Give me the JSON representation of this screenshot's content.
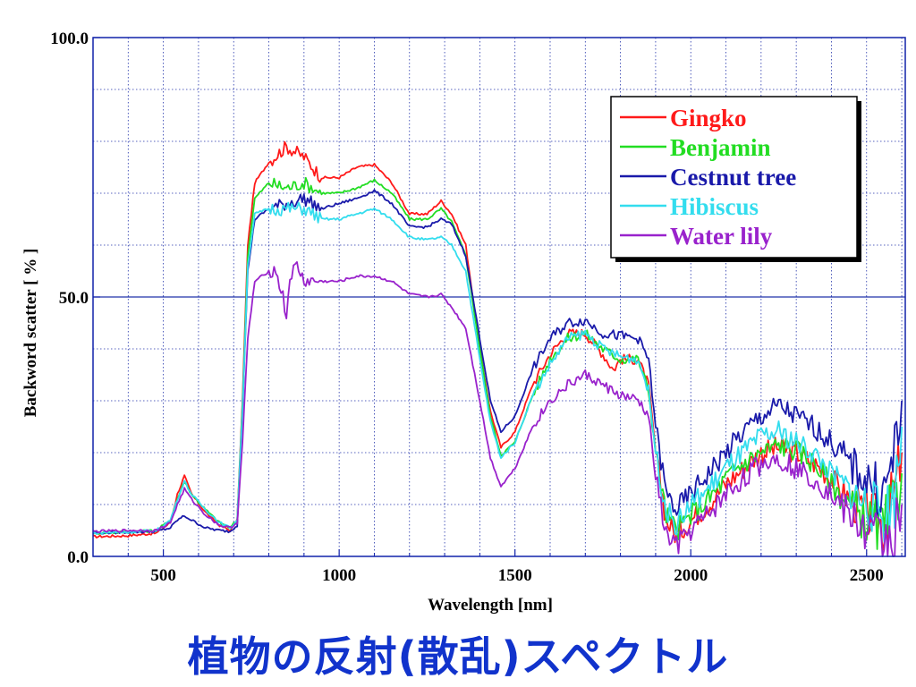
{
  "caption": "植物の反射(散乱)スペクトル",
  "chart_data": {
    "type": "line",
    "xlabel": "Wavelength [nm]",
    "ylabel": "Backword scatter [ % ]",
    "xlim": [
      300,
      2610
    ],
    "ylim": [
      0,
      100
    ],
    "xticks": [
      500,
      1000,
      1500,
      2000,
      2500
    ],
    "yticks": [
      0,
      50,
      100
    ],
    "ytick_labels": [
      "0.0",
      "50.0",
      "100.0"
    ],
    "grid": true,
    "legend_position": "top-right",
    "series": [
      {
        "name": "Gingko",
        "color": "#ff1a1a",
        "points": [
          [
            300,
            3.8
          ],
          [
            400,
            4.0
          ],
          [
            480,
            4.5
          ],
          [
            520,
            6.5
          ],
          [
            540,
            12
          ],
          [
            560,
            15.5
          ],
          [
            580,
            12
          ],
          [
            620,
            8.5
          ],
          [
            660,
            6
          ],
          [
            690,
            5
          ],
          [
            710,
            7
          ],
          [
            725,
            30
          ],
          [
            740,
            60
          ],
          [
            760,
            72
          ],
          [
            800,
            76
          ],
          [
            850,
            79
          ],
          [
            900,
            77
          ],
          [
            950,
            73
          ],
          [
            1000,
            73
          ],
          [
            1050,
            75
          ],
          [
            1100,
            75.5
          ],
          [
            1150,
            72
          ],
          [
            1200,
            66
          ],
          [
            1250,
            66
          ],
          [
            1290,
            68.5
          ],
          [
            1320,
            66
          ],
          [
            1360,
            60
          ],
          [
            1400,
            40
          ],
          [
            1430,
            28
          ],
          [
            1460,
            21
          ],
          [
            1500,
            24
          ],
          [
            1550,
            33
          ],
          [
            1600,
            39
          ],
          [
            1650,
            43
          ],
          [
            1700,
            43
          ],
          [
            1750,
            39
          ],
          [
            1780,
            36
          ],
          [
            1800,
            38
          ],
          [
            1850,
            38
          ],
          [
            1880,
            33
          ],
          [
            1900,
            20
          ],
          [
            1930,
            7
          ],
          [
            1960,
            4
          ],
          [
            2000,
            7
          ],
          [
            2050,
            10
          ],
          [
            2100,
            14
          ],
          [
            2150,
            17
          ],
          [
            2200,
            20
          ],
          [
            2250,
            21
          ],
          [
            2300,
            20
          ],
          [
            2350,
            18
          ],
          [
            2400,
            15
          ],
          [
            2450,
            11
          ],
          [
            2500,
            8
          ],
          [
            2550,
            6
          ],
          [
            2580,
            12
          ],
          [
            2600,
            20
          ]
        ]
      },
      {
        "name": "Benjamin",
        "color": "#22dd22",
        "points": [
          [
            300,
            4.5
          ],
          [
            400,
            4.7
          ],
          [
            480,
            5
          ],
          [
            520,
            7
          ],
          [
            540,
            11
          ],
          [
            560,
            14.5
          ],
          [
            580,
            12
          ],
          [
            620,
            9
          ],
          [
            660,
            6.5
          ],
          [
            690,
            5.5
          ],
          [
            710,
            7
          ],
          [
            725,
            29
          ],
          [
            740,
            58
          ],
          [
            760,
            69
          ],
          [
            800,
            72
          ],
          [
            850,
            71
          ],
          [
            900,
            72
          ],
          [
            950,
            70
          ],
          [
            1000,
            70
          ],
          [
            1050,
            71
          ],
          [
            1100,
            72.5
          ],
          [
            1150,
            70
          ],
          [
            1200,
            65
          ],
          [
            1250,
            65
          ],
          [
            1290,
            67
          ],
          [
            1320,
            64.5
          ],
          [
            1360,
            58
          ],
          [
            1400,
            40
          ],
          [
            1430,
            27
          ],
          [
            1460,
            19.5
          ],
          [
            1500,
            22
          ],
          [
            1550,
            31
          ],
          [
            1600,
            38
          ],
          [
            1650,
            42
          ],
          [
            1700,
            43
          ],
          [
            1750,
            40
          ],
          [
            1800,
            38
          ],
          [
            1850,
            38
          ],
          [
            1880,
            32
          ],
          [
            1900,
            20
          ],
          [
            1930,
            8
          ],
          [
            1960,
            5
          ],
          [
            2000,
            8
          ],
          [
            2050,
            11
          ],
          [
            2100,
            15
          ],
          [
            2150,
            18
          ],
          [
            2200,
            20
          ],
          [
            2250,
            21.5
          ],
          [
            2300,
            20.5
          ],
          [
            2350,
            18
          ],
          [
            2400,
            14
          ],
          [
            2450,
            10
          ],
          [
            2500,
            7
          ],
          [
            2550,
            5
          ],
          [
            2580,
            10
          ],
          [
            2600,
            16
          ]
        ]
      },
      {
        "name": "Cestnut tree",
        "color": "#1a1aaa",
        "points": [
          [
            300,
            4.5
          ],
          [
            400,
            4.7
          ],
          [
            480,
            4.8
          ],
          [
            520,
            5.5
          ],
          [
            540,
            7
          ],
          [
            560,
            7.8
          ],
          [
            580,
            7
          ],
          [
            620,
            5.5
          ],
          [
            660,
            5
          ],
          [
            690,
            4.8
          ],
          [
            710,
            6
          ],
          [
            725,
            28
          ],
          [
            740,
            55
          ],
          [
            760,
            65
          ],
          [
            800,
            67
          ],
          [
            850,
            68
          ],
          [
            900,
            69
          ],
          [
            950,
            67
          ],
          [
            1000,
            68
          ],
          [
            1050,
            69
          ],
          [
            1100,
            70.5
          ],
          [
            1150,
            68
          ],
          [
            1200,
            63.5
          ],
          [
            1250,
            63.5
          ],
          [
            1290,
            65
          ],
          [
            1320,
            64
          ],
          [
            1360,
            58
          ],
          [
            1400,
            42
          ],
          [
            1430,
            30
          ],
          [
            1460,
            24
          ],
          [
            1500,
            27
          ],
          [
            1550,
            36
          ],
          [
            1600,
            42
          ],
          [
            1650,
            45
          ],
          [
            1700,
            45.5
          ],
          [
            1750,
            43
          ],
          [
            1800,
            42.5
          ],
          [
            1850,
            42
          ],
          [
            1880,
            38
          ],
          [
            1900,
            25
          ],
          [
            1930,
            12
          ],
          [
            1960,
            9
          ],
          [
            2000,
            12
          ],
          [
            2050,
            16
          ],
          [
            2100,
            20
          ],
          [
            2150,
            24
          ],
          [
            2200,
            27
          ],
          [
            2250,
            29
          ],
          [
            2300,
            27
          ],
          [
            2350,
            25
          ],
          [
            2400,
            22
          ],
          [
            2450,
            18
          ],
          [
            2500,
            15
          ],
          [
            2550,
            12
          ],
          [
            2580,
            20
          ],
          [
            2600,
            30
          ]
        ]
      },
      {
        "name": "Hibiscus",
        "color": "#33ddee",
        "points": [
          [
            300,
            4.5
          ],
          [
            400,
            4.7
          ],
          [
            480,
            5
          ],
          [
            520,
            7
          ],
          [
            540,
            11
          ],
          [
            560,
            14.5
          ],
          [
            580,
            12
          ],
          [
            620,
            9
          ],
          [
            660,
            6.5
          ],
          [
            690,
            5.5
          ],
          [
            710,
            7
          ],
          [
            725,
            28
          ],
          [
            740,
            56
          ],
          [
            760,
            66
          ],
          [
            800,
            67
          ],
          [
            850,
            67
          ],
          [
            900,
            67
          ],
          [
            950,
            65
          ],
          [
            1000,
            65
          ],
          [
            1050,
            66
          ],
          [
            1100,
            67
          ],
          [
            1150,
            65
          ],
          [
            1200,
            61.5
          ],
          [
            1250,
            61
          ],
          [
            1290,
            61.5
          ],
          [
            1320,
            60
          ],
          [
            1360,
            55
          ],
          [
            1400,
            38
          ],
          [
            1430,
            26
          ],
          [
            1460,
            19
          ],
          [
            1500,
            22
          ],
          [
            1550,
            31
          ],
          [
            1600,
            37
          ],
          [
            1650,
            42
          ],
          [
            1700,
            43
          ],
          [
            1750,
            40
          ],
          [
            1800,
            38.5
          ],
          [
            1850,
            38
          ],
          [
            1880,
            32
          ],
          [
            1900,
            20
          ],
          [
            1930,
            9
          ],
          [
            1960,
            6
          ],
          [
            2000,
            10
          ],
          [
            2050,
            13
          ],
          [
            2100,
            17
          ],
          [
            2150,
            20
          ],
          [
            2200,
            23
          ],
          [
            2250,
            24
          ],
          [
            2300,
            22
          ],
          [
            2350,
            20
          ],
          [
            2400,
            16
          ],
          [
            2450,
            13
          ],
          [
            2500,
            10
          ],
          [
            2550,
            8
          ],
          [
            2580,
            12
          ],
          [
            2600,
            25
          ]
        ]
      },
      {
        "name": "Water lily",
        "color": "#9922cc",
        "points": [
          [
            300,
            4.8
          ],
          [
            400,
            5
          ],
          [
            480,
            5
          ],
          [
            520,
            6.5
          ],
          [
            540,
            10
          ],
          [
            560,
            13
          ],
          [
            580,
            11
          ],
          [
            620,
            8
          ],
          [
            660,
            6
          ],
          [
            690,
            5.5
          ],
          [
            710,
            6.5
          ],
          [
            725,
            22
          ],
          [
            740,
            42
          ],
          [
            760,
            53
          ],
          [
            800,
            55
          ],
          [
            820,
            55
          ],
          [
            840,
            50
          ],
          [
            850,
            46
          ],
          [
            860,
            54
          ],
          [
            880,
            56
          ],
          [
            900,
            53
          ],
          [
            950,
            53
          ],
          [
            1000,
            53
          ],
          [
            1050,
            54
          ],
          [
            1100,
            54
          ],
          [
            1150,
            53
          ],
          [
            1200,
            50.5
          ],
          [
            1250,
            50
          ],
          [
            1290,
            50.5
          ],
          [
            1320,
            48
          ],
          [
            1360,
            44
          ],
          [
            1400,
            30
          ],
          [
            1430,
            19
          ],
          [
            1460,
            13.5
          ],
          [
            1500,
            17
          ],
          [
            1550,
            25
          ],
          [
            1600,
            30
          ],
          [
            1650,
            33
          ],
          [
            1700,
            35
          ],
          [
            1750,
            33
          ],
          [
            1800,
            31
          ],
          [
            1850,
            30
          ],
          [
            1880,
            27
          ],
          [
            1900,
            15
          ],
          [
            1930,
            4
          ],
          [
            1960,
            2
          ],
          [
            2000,
            5
          ],
          [
            2050,
            8
          ],
          [
            2100,
            12
          ],
          [
            2150,
            15
          ],
          [
            2200,
            18
          ],
          [
            2250,
            19
          ],
          [
            2300,
            17
          ],
          [
            2350,
            15
          ],
          [
            2400,
            12
          ],
          [
            2450,
            8
          ],
          [
            2500,
            5
          ],
          [
            2550,
            3
          ],
          [
            2580,
            5
          ],
          [
            2600,
            10
          ]
        ]
      }
    ]
  }
}
